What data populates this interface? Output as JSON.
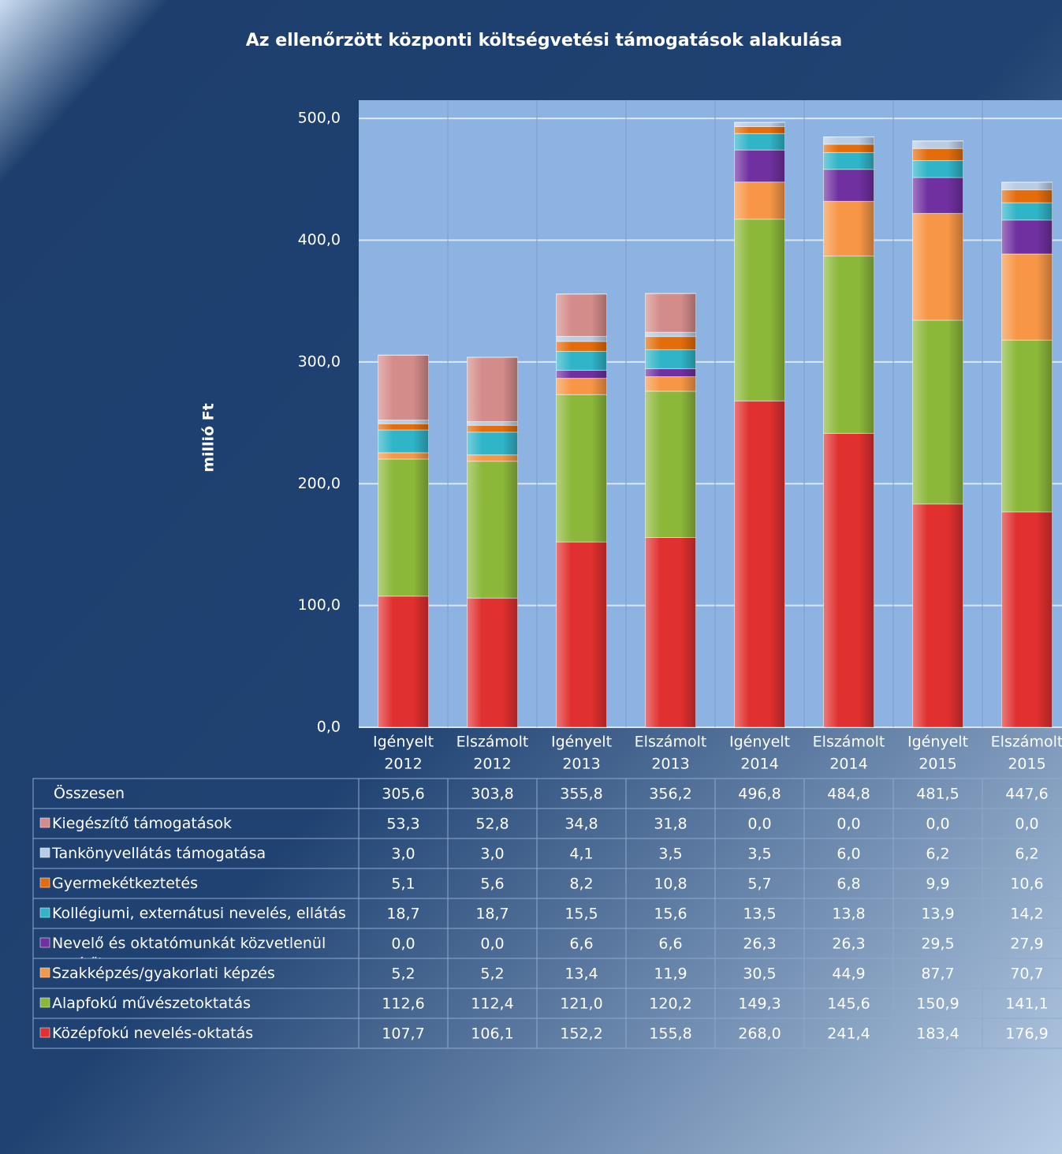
{
  "chart_data": {
    "type": "stacked-bar",
    "title": "Az ellenőrzött központi költségvetési támogatások alakulása",
    "y_label": "millió Ft",
    "categories": [
      [
        "Igényelt",
        "2012"
      ],
      [
        "Elszámolt",
        "2012"
      ],
      [
        "Igényelt",
        "2013"
      ],
      [
        "Elszámolt",
        "2013"
      ],
      [
        "Igényelt",
        "2014"
      ],
      [
        "Elszámolt",
        "2014"
      ],
      [
        "Igényelt",
        "2015"
      ],
      [
        "Elszámolt",
        "2015"
      ]
    ],
    "ylim": [
      0,
      515
    ],
    "yticks": [
      {
        "value": 0,
        "label": "0,0"
      },
      {
        "value": 100,
        "label": "100,0"
      },
      {
        "value": 200,
        "label": "200,0"
      },
      {
        "value": 300,
        "label": "300,0"
      },
      {
        "value": 400,
        "label": "400,0"
      },
      {
        "value": 500,
        "label": "500,0"
      }
    ],
    "grid": true,
    "total": {
      "name": "Összesen",
      "values": [
        305.6,
        303.8,
        355.8,
        356.2,
        496.8,
        484.8,
        481.5,
        447.6
      ],
      "value_labels": [
        "305,6",
        "303,8",
        "355,8",
        "356,2",
        "496,8",
        "484,8",
        "481,5",
        "447,6"
      ]
    },
    "series": [
      {
        "name": "Középfokú nevelés-oktatás",
        "color": "#e0302f",
        "values": [
          107.7,
          106.1,
          152.2,
          155.8,
          268.0,
          241.4,
          183.4,
          176.9
        ],
        "value_labels": [
          "107,7",
          "106,1",
          "152,2",
          "155,8",
          "268,0",
          "241,4",
          "183,4",
          "176,9"
        ]
      },
      {
        "name": "Alapfokú művészetoktatás",
        "color": "#8cb83a",
        "values": [
          112.6,
          112.4,
          121.0,
          120.2,
          149.3,
          145.6,
          150.9,
          141.1
        ],
        "value_labels": [
          "112,6",
          "112,4",
          "121,0",
          "120,2",
          "149,3",
          "145,6",
          "150,9",
          "141,1"
        ]
      },
      {
        "name": "Szakképzés/gyakorlati képzés",
        "color": "#f79646",
        "values": [
          5.2,
          5.2,
          13.4,
          11.9,
          30.5,
          44.9,
          87.7,
          70.7
        ],
        "value_labels": [
          "5,2",
          "5,2",
          "13,4",
          "11,9",
          "30,5",
          "44,9",
          "87,7",
          "70,7"
        ]
      },
      {
        "name": "Nevelő és oktatómunkát közvetlenül segítők",
        "color": "#7030a0",
        "values": [
          0.0,
          0.0,
          6.6,
          6.6,
          26.3,
          26.3,
          29.5,
          27.9
        ],
        "value_labels": [
          "0,0",
          "0,0",
          "6,6",
          "6,6",
          "26,3",
          "26,3",
          "29,5",
          "27,9"
        ]
      },
      {
        "name": "Kollégiumi, externátusi nevelés, ellátás",
        "color": "#2fb4c8",
        "values": [
          18.7,
          18.7,
          15.5,
          15.6,
          13.5,
          13.8,
          13.9,
          14.2
        ],
        "value_labels": [
          "18,7",
          "18,7",
          "15,5",
          "15,6",
          "13,5",
          "13,8",
          "13,9",
          "14,2"
        ]
      },
      {
        "name": "Gyermekétkeztetés",
        "color": "#e46c0a",
        "values": [
          5.1,
          5.6,
          8.2,
          10.8,
          5.7,
          6.8,
          9.9,
          10.6
        ],
        "value_labels": [
          "5,1",
          "5,6",
          "8,2",
          "10,8",
          "5,7",
          "6,8",
          "9,9",
          "10,6"
        ]
      },
      {
        "name": "Tankönyvellátás támogatása",
        "color": "#b8cce4",
        "values": [
          3.0,
          3.0,
          4.1,
          3.5,
          3.5,
          6.0,
          6.2,
          6.2
        ],
        "value_labels": [
          "3,0",
          "3,0",
          "4,1",
          "3,5",
          "3,5",
          "6,0",
          "6,2",
          "6,2"
        ]
      },
      {
        "name": "Kiegészítő támogatások",
        "color": "#d48c8a",
        "values": [
          53.3,
          52.8,
          34.8,
          31.8,
          0.0,
          0.0,
          0.0,
          0.0
        ],
        "value_labels": [
          "53,3",
          "52,8",
          "34,8",
          "31,8",
          "0,0",
          "0,0",
          "0,0",
          "0,0"
        ]
      }
    ]
  }
}
